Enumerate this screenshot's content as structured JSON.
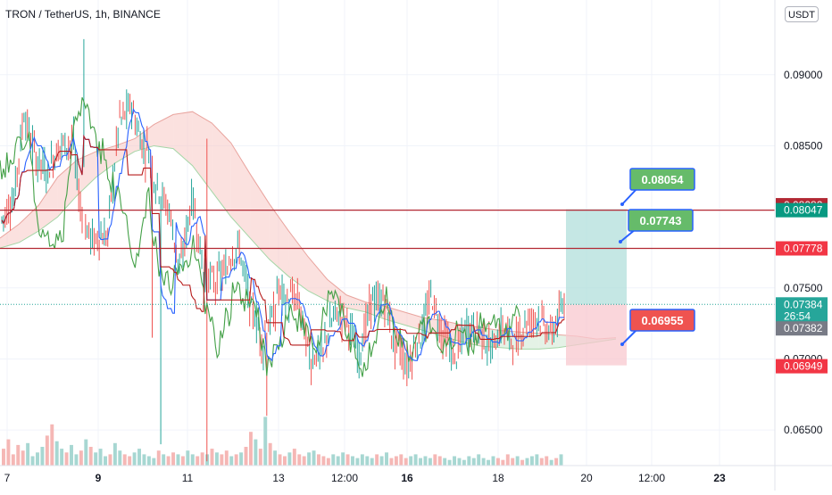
{
  "header": {
    "title": "TRON / TetherUS, 1h, BINANCE",
    "currency_button": "USDT"
  },
  "colors": {
    "up": "#26a69a",
    "down": "#ef5350",
    "line_green": "#43a047",
    "line_blue": "#2962ff",
    "line_red": "#b71c1c",
    "resistance": "#b22833",
    "cloud_red": "#f8c8c4",
    "cloud_green": "#cde8d2",
    "target_zone": "#b2dfdb",
    "stop_zone": "#f8c8cf",
    "annotation_green": "#66bb6a",
    "annotation_red": "#ef5350",
    "annotation_border": "#2962ff"
  },
  "chart_data": {
    "type": "candlestick",
    "symbol": "TRON / TetherUS",
    "interval": "1h",
    "exchange": "BINANCE",
    "ylim": [
      0.0625,
      0.0935
    ],
    "y_ticks": [
      "0.09000",
      "0.08500",
      "0.07500",
      "0.07000",
      "0.06500"
    ],
    "x_ticks": [
      "7",
      "9",
      "11",
      "13",
      "12:00",
      "16",
      "18",
      "20",
      "12:00",
      "23"
    ],
    "horizontal_lines": [
      0.08047,
      0.07778
    ],
    "price_labels": [
      {
        "value": "0.08082",
        "price": 0.08082,
        "color": "#b22833"
      },
      {
        "value": "0.08047",
        "price": 0.08047,
        "color": "#089981"
      },
      {
        "value": "0.07778",
        "price": 0.07778,
        "color": "#f23645"
      },
      {
        "value": "0.07384",
        "price": 0.07384,
        "color": "#26a69a"
      },
      {
        "value": "26:54",
        "price": 0.07302,
        "color": "#26a69a"
      },
      {
        "value": "0.07382",
        "price": 0.07215,
        "color": "#787b86"
      },
      {
        "value": "0.06949",
        "price": 0.06949,
        "color": "#f23645"
      }
    ],
    "last_price": 0.07384,
    "position": {
      "entry": 0.07384,
      "target": 0.08054,
      "stop": 0.06955
    },
    "annotations": [
      {
        "text": "0.08054",
        "price": 0.08054,
        "kind": "target"
      },
      {
        "text": "0.07743",
        "price": 0.07743,
        "kind": "target"
      },
      {
        "text": "0.06955",
        "price": 0.06955,
        "kind": "stop"
      }
    ],
    "price_path": [
      [
        0.0798,
        0.0801
      ],
      [
        0.0812,
        0.0843
      ],
      [
        0.0868,
        0.0858
      ],
      [
        0.0842,
        0.0826
      ],
      [
        0.0836,
        0.0839
      ],
      [
        0.0851,
        0.0862
      ],
      [
        0.0847,
        0.0818
      ],
      [
        0.0792,
        0.0779
      ],
      [
        0.0786,
        0.0752
      ],
      [
        0.0803,
        0.0832
      ],
      [
        0.0868,
        0.0889
      ],
      [
        0.0871,
        0.0843
      ],
      [
        0.0858,
        0.0846
      ],
      [
        0.0822,
        0.0817
      ],
      [
        0.0805,
        0.0779
      ],
      [
        0.0768,
        0.0785
      ],
      [
        0.081,
        0.0791
      ],
      [
        0.0762,
        0.0748
      ],
      [
        0.0758,
        0.0739
      ],
      [
        0.0772,
        0.079
      ],
      [
        0.0771,
        0.0753
      ],
      [
        0.0735,
        0.0706
      ],
      [
        0.0718,
        0.0692
      ],
      [
        0.0749,
        0.0737
      ],
      [
        0.0745,
        0.076
      ],
      [
        0.0732,
        0.0704
      ],
      [
        0.0703,
        0.0688
      ],
      [
        0.0712,
        0.0721
      ],
      [
        0.0731,
        0.0739
      ],
      [
        0.0724,
        0.0703
      ],
      [
        0.0708,
        0.0722
      ],
      [
        0.0738,
        0.0744
      ],
      [
        0.074,
        0.0721
      ],
      [
        0.0714,
        0.0703
      ],
      [
        0.0697,
        0.0708
      ],
      [
        0.0714,
        0.0732
      ],
      [
        0.0742,
        0.0728
      ],
      [
        0.0718,
        0.0706
      ],
      [
        0.0702,
        0.0716
      ],
      [
        0.0721,
        0.0727
      ],
      [
        0.0719,
        0.0712
      ],
      [
        0.0708,
        0.0718
      ],
      [
        0.0721,
        0.0716
      ],
      [
        0.0712,
        0.0722
      ],
      [
        0.0726,
        0.0733
      ],
      [
        0.0728,
        0.0722
      ],
      [
        0.0719,
        0.0726
      ],
      [
        0.0735,
        0.0738
      ]
    ],
    "ichimoku": {
      "span_a": [
        0.0785,
        0.0795,
        0.0808,
        0.0828,
        0.084,
        0.0846,
        0.085,
        0.0855,
        0.0865,
        0.0872,
        0.0874,
        0.0866,
        0.0852,
        0.083,
        0.0809,
        0.079,
        0.0772,
        0.0756,
        0.0745,
        0.074,
        0.0737,
        0.0733,
        0.0729,
        0.0727,
        0.0724,
        0.0722,
        0.072,
        0.0719,
        0.0718,
        0.0717,
        0.0716,
        0.0714,
        0.0715
      ],
      "span_b": [
        0.0778,
        0.0782,
        0.079,
        0.08,
        0.0815,
        0.0828,
        0.0838,
        0.0846,
        0.085,
        0.0848,
        0.0836,
        0.0818,
        0.08,
        0.0785,
        0.077,
        0.0758,
        0.0748,
        0.0741,
        0.0736,
        0.0733,
        0.0728,
        0.0724,
        0.072,
        0.0716,
        0.0712,
        0.0709,
        0.0708,
        0.0707,
        0.0707,
        0.0708,
        0.071,
        0.0712,
        0.0714
      ]
    },
    "volume": [
      9,
      14,
      6,
      11,
      8,
      12,
      5,
      7,
      10,
      16,
      22,
      13,
      9,
      7,
      11,
      6,
      8,
      14,
      10,
      7,
      9,
      5,
      6,
      12,
      8,
      6,
      5,
      7,
      9,
      6,
      5,
      4,
      8,
      6,
      5,
      7,
      6,
      5,
      8,
      6,
      5,
      7,
      6,
      9,
      7,
      6,
      8,
      5,
      6,
      7,
      10,
      18,
      14,
      9,
      26,
      12,
      8,
      6,
      5,
      7,
      9,
      6,
      5,
      7,
      8,
      6,
      5,
      4,
      6,
      5,
      7,
      6,
      5,
      4,
      6,
      5,
      4,
      6,
      5,
      7,
      4,
      5,
      6,
      4,
      5,
      6,
      4,
      5,
      4,
      6,
      5,
      4,
      3,
      5,
      4,
      3,
      5,
      4,
      6,
      4,
      3,
      5,
      4,
      3,
      6,
      4,
      5,
      3,
      4,
      5,
      6,
      4,
      5,
      3,
      4,
      6
    ]
  }
}
